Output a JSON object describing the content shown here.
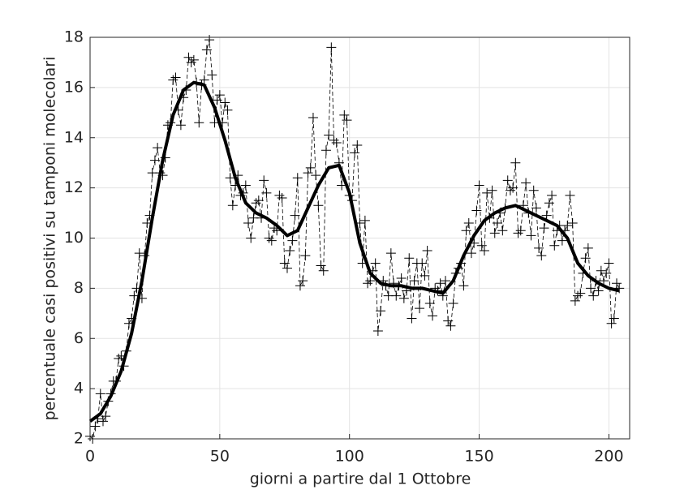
{
  "chart_data": {
    "type": "line",
    "xlabel": "giorni a partire dal 1 Ottobre",
    "ylabel": "percentuale casi positivi su tamponi molecolari",
    "xlim": [
      0,
      208
    ],
    "xticks": [
      0,
      50,
      100,
      150,
      200
    ],
    "ylim": [
      2,
      18
    ],
    "yticks": [
      2,
      4,
      6,
      8,
      10,
      12,
      14,
      16,
      18
    ],
    "grid": true,
    "series": [
      {
        "color": "#000000",
        "style": "dashed-plus",
        "x": [
          0,
          1,
          2,
          3,
          4,
          5,
          6,
          7,
          8,
          9,
          10,
          11,
          12,
          13,
          14,
          15,
          16,
          17,
          18,
          19,
          20,
          21,
          22,
          23,
          24,
          25,
          26,
          27,
          28,
          29,
          30,
          31,
          32,
          33,
          34,
          35,
          36,
          37,
          38,
          39,
          40,
          41,
          42,
          43,
          44,
          45,
          46,
          47,
          48,
          49,
          50,
          51,
          52,
          53,
          54,
          55,
          56,
          57,
          58,
          59,
          60,
          61,
          62,
          63,
          64,
          65,
          66,
          67,
          68,
          69,
          70,
          71,
          72,
          73,
          74,
          75,
          76,
          77,
          78,
          79,
          80,
          81,
          82,
          83,
          84,
          85,
          86,
          87,
          88,
          89,
          90,
          91,
          92,
          93,
          94,
          95,
          96,
          97,
          98,
          99,
          100,
          101,
          102,
          103,
          104,
          105,
          106,
          107,
          108,
          109,
          110,
          111,
          112,
          113,
          114,
          115,
          116,
          117,
          118,
          119,
          120,
          121,
          122,
          123,
          124,
          125,
          126,
          127,
          128,
          129,
          130,
          131,
          132,
          133,
          134,
          135,
          136,
          137,
          138,
          139,
          140,
          141,
          142,
          143,
          144,
          145,
          146,
          147,
          148,
          149,
          150,
          151,
          152,
          153,
          154,
          155,
          156,
          157,
          158,
          159,
          160,
          161,
          162,
          163,
          164,
          165,
          166,
          167,
          168,
          169,
          170,
          171,
          172,
          173,
          174,
          175,
          176,
          177,
          178,
          179,
          180,
          181,
          182,
          183,
          184,
          185,
          186,
          187,
          188,
          189,
          190,
          191,
          192,
          193,
          194,
          195,
          196,
          197,
          198,
          199,
          200,
          201,
          202,
          203,
          204
        ],
        "values": [
          2.1,
          2.0,
          2.5,
          2.8,
          3.8,
          2.7,
          2.9,
          3.5,
          3.8,
          4.3,
          4.3,
          5.2,
          5.3,
          4.9,
          5.5,
          6.6,
          6.8,
          7.7,
          8.0,
          9.4,
          7.6,
          9.3,
          10.6,
          10.9,
          12.6,
          13.1,
          13.6,
          12.6,
          12.5,
          13.2,
          14.5,
          14.6,
          16.3,
          16.4,
          15.1,
          14.5,
          15.6,
          15.9,
          17.2,
          17.0,
          17.1,
          16.2,
          14.6,
          16.1,
          16.3,
          17.5,
          17.9,
          16.5,
          14.6,
          15.5,
          15.7,
          14.6,
          15.4,
          15.1,
          12.4,
          11.3,
          12.1,
          12.5,
          11.7,
          11.8,
          12.1,
          10.6,
          10.0,
          10.8,
          11.4,
          11.5,
          10.8,
          12.3,
          11.8,
          10.0,
          9.9,
          10.4,
          10.3,
          11.7,
          11.6,
          9.0,
          8.8,
          9.5,
          9.9,
          10.9,
          12.4,
          8.1,
          8.3,
          9.3,
          12.6,
          12.8,
          14.8,
          12.5,
          11.3,
          8.9,
          8.7,
          13.5,
          14.1,
          17.6,
          13.9,
          13.8,
          13.0,
          12.1,
          14.9,
          14.7,
          11.7,
          11.5,
          13.4,
          13.7,
          10.6,
          9.0,
          10.7,
          8.2,
          8.3,
          8.7,
          9.0,
          6.3,
          7.1,
          8.3,
          8.1,
          7.7,
          9.4,
          8.2,
          7.7,
          8.1,
          8.4,
          7.6,
          7.9,
          9.2,
          6.8,
          8.3,
          9.0,
          7.2,
          9.0,
          8.5,
          9.5,
          7.4,
          6.9,
          8.0,
          7.9,
          8.2,
          7.7,
          8.3,
          6.7,
          6.5,
          7.4,
          8.6,
          8.8,
          9.0,
          8.1,
          10.3,
          10.6,
          9.4,
          9.8,
          11.1,
          12.1,
          9.7,
          9.5,
          11.8,
          10.8,
          11.9,
          10.2,
          10.6,
          11.0,
          10.3,
          11.2,
          12.3,
          11.9,
          12.0,
          13.0,
          10.2,
          10.3,
          11.3,
          12.2,
          11.0,
          10.1,
          11.9,
          11.2,
          9.6,
          9.3,
          10.4,
          10.9,
          11.4,
          11.7,
          9.7,
          10.3,
          10.5,
          9.9,
          10.3,
          10.5,
          11.7,
          10.6,
          7.5,
          7.7,
          7.8,
          8.6,
          9.2,
          9.6,
          8.0,
          7.7,
          8.3,
          7.9,
          8.7,
          8.3,
          8.6,
          9.0,
          6.6,
          6.8,
          8.2,
          8.0
        ]
      },
      {
        "color": "#000000",
        "style": "thick",
        "x": [
          0,
          4,
          8,
          12,
          16,
          20,
          24,
          28,
          32,
          36,
          40,
          44,
          48,
          52,
          56,
          60,
          64,
          68,
          72,
          76,
          80,
          84,
          88,
          92,
          96,
          100,
          104,
          108,
          112,
          116,
          120,
          124,
          128,
          132,
          136,
          140,
          144,
          148,
          152,
          156,
          160,
          164,
          168,
          172,
          176,
          180,
          184,
          188,
          192,
          196,
          200,
          204
        ],
        "values": [
          2.7,
          3.0,
          3.7,
          4.7,
          6.2,
          8.3,
          10.8,
          13.1,
          14.9,
          15.9,
          16.2,
          16.1,
          15.2,
          13.9,
          12.4,
          11.4,
          11.0,
          10.8,
          10.5,
          10.1,
          10.3,
          11.2,
          12.1,
          12.8,
          12.9,
          11.8,
          9.8,
          8.6,
          8.2,
          8.1,
          8.1,
          8.0,
          8.0,
          7.9,
          7.8,
          8.3,
          9.3,
          10.1,
          10.7,
          11.0,
          11.2,
          11.3,
          11.1,
          10.9,
          10.7,
          10.5,
          10.0,
          9.0,
          8.5,
          8.2,
          8.0,
          7.9
        ]
      }
    ]
  }
}
